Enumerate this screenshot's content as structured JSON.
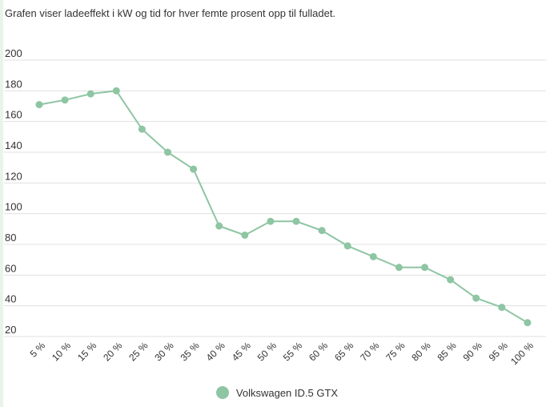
{
  "caption": "Grafen viser ladeeffekt i kW og tid for hver femte prosent opp til fulladet.",
  "colors": {
    "series": "#8ec5a3",
    "grid": "#e0e0e0",
    "text": "#333333"
  },
  "chart_data": {
    "type": "line",
    "title": "",
    "xlabel": "",
    "ylabel": "",
    "ylim": [
      20,
      200
    ],
    "yticks": [
      20,
      40,
      60,
      80,
      100,
      120,
      140,
      160,
      180,
      200
    ],
    "grid": true,
    "legend_position": "bottom-center",
    "categories": [
      "5 %",
      "10 %",
      "15 %",
      "20 %",
      "25 %",
      "30 %",
      "35 %",
      "40 %",
      "45 %",
      "50 %",
      "55 %",
      "60 %",
      "65 %",
      "70 %",
      "75 %",
      "80 %",
      "85 %",
      "90 %",
      "95 %",
      "100 %"
    ],
    "series": [
      {
        "name": "Volkswagen ID.5 GTX",
        "values": [
          171,
          174,
          178,
          180,
          155,
          140,
          129,
          92,
          86,
          95,
          95,
          89,
          79,
          72,
          65,
          65,
          57,
          45,
          39,
          29
        ]
      }
    ]
  }
}
